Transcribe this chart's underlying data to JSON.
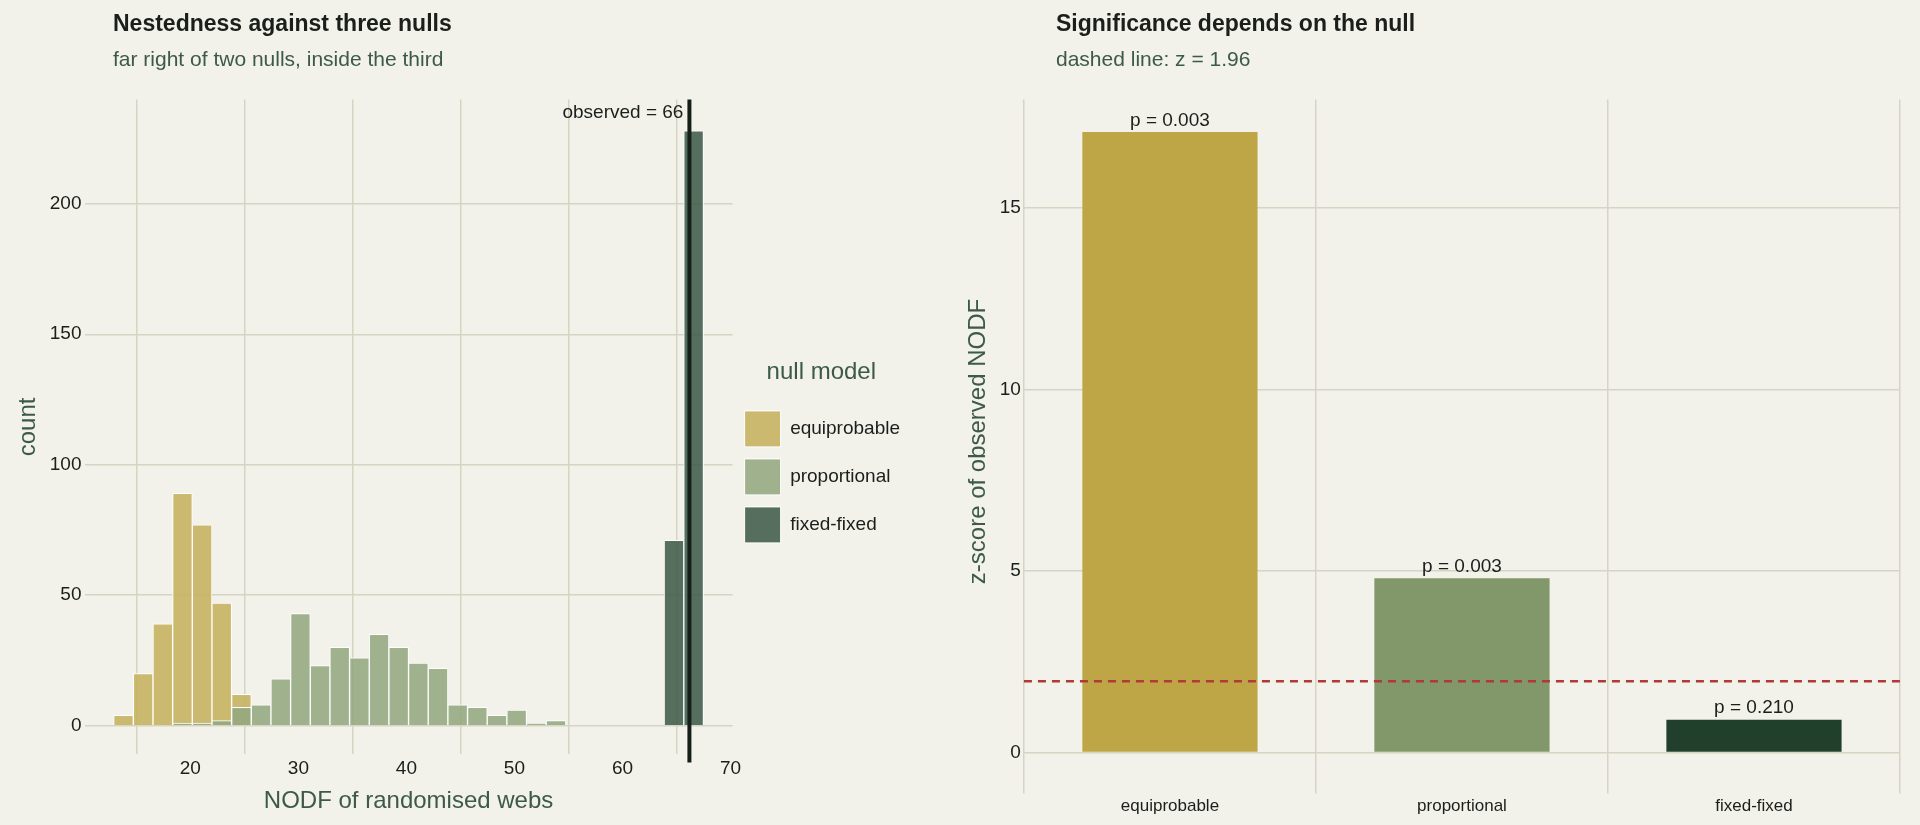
{
  "chart_data": [
    {
      "type": "histogram",
      "title": "Nestedness against three nulls",
      "subtitle": "far right of two nulls, inside the third",
      "xlabel": "NODF of randomised webs",
      "ylabel": "count",
      "legend_title": "null model",
      "legend": "right",
      "grid": true,
      "bins": [
        12.9,
        14.72,
        16.54,
        18.36,
        20.18,
        22.0,
        23.82,
        25.64,
        27.46,
        29.28,
        31.1,
        32.92,
        34.74,
        36.56,
        38.38,
        40.2,
        42.02,
        43.84,
        45.66,
        47.48,
        49.3,
        51.12,
        52.94,
        54.76,
        56.58,
        58.4,
        60.22,
        62.04,
        63.86,
        65.68,
        67.5
      ],
      "series": [
        {
          "name": "equiprobable",
          "color": "#c4b05c",
          "values": [
            4,
            20,
            39,
            89,
            77,
            47,
            12,
            null,
            null,
            null,
            null,
            null,
            null,
            null,
            null,
            null,
            null,
            null,
            null,
            null,
            null,
            null,
            null,
            null,
            null,
            null,
            null,
            null,
            null,
            null
          ]
        },
        {
          "name": "proportional",
          "color": "#93a77f",
          "values": [
            null,
            null,
            null,
            1,
            1,
            2,
            7,
            8,
            18,
            43,
            23,
            30,
            26,
            35,
            30,
            24,
            22,
            8,
            7,
            4,
            6,
            1,
            2,
            0,
            0,
            0,
            0,
            0,
            null,
            null
          ]
        },
        {
          "name": "fixed-fixed",
          "color": "#3d5a47",
          "values": [
            null,
            null,
            null,
            null,
            null,
            null,
            null,
            null,
            null,
            null,
            null,
            null,
            null,
            null,
            null,
            null,
            null,
            null,
            null,
            null,
            null,
            null,
            null,
            null,
            null,
            null,
            null,
            null,
            71,
            228
          ]
        }
      ],
      "xlim": [
        10.2,
        70.2
      ],
      "xticks": [
        20,
        30,
        40,
        50,
        60,
        70
      ],
      "ylim": [
        -11,
        240
      ],
      "yticks": [
        0,
        50,
        100,
        150,
        200
      ],
      "ref_lines": [
        {
          "axis": "x",
          "value": 66.2,
          "label": "observed = 66",
          "color": "#141f18",
          "line_style": "solid"
        }
      ]
    },
    {
      "type": "bar",
      "title": "Significance depends on the null",
      "subtitle": "dashed line: z = 1.96",
      "ylabel": "z-score of observed NODF",
      "grid": true,
      "categories": [
        "equiprobable",
        "proportional",
        "fixed-fixed"
      ],
      "values": [
        17.1,
        4.8,
        0.9
      ],
      "colors": [
        "#bea646",
        "#82976a",
        "#21402c"
      ],
      "annotations": [
        {
          "text": "p = 0.003",
          "x": "equiprobable",
          "y": 17.1
        },
        {
          "text": "p = 0.003",
          "x": "proportional",
          "y": 4.8
        },
        {
          "text": "p = 0.210",
          "x": "fixed-fixed",
          "y": 0.9
        }
      ],
      "ylim": [
        -0.86,
        18
      ],
      "yticks": [
        0,
        5,
        10,
        15
      ],
      "ref_lines": [
        {
          "axis": "y",
          "value": 1.96,
          "color": "#b03a3a",
          "line_style": "dashed"
        }
      ]
    }
  ]
}
